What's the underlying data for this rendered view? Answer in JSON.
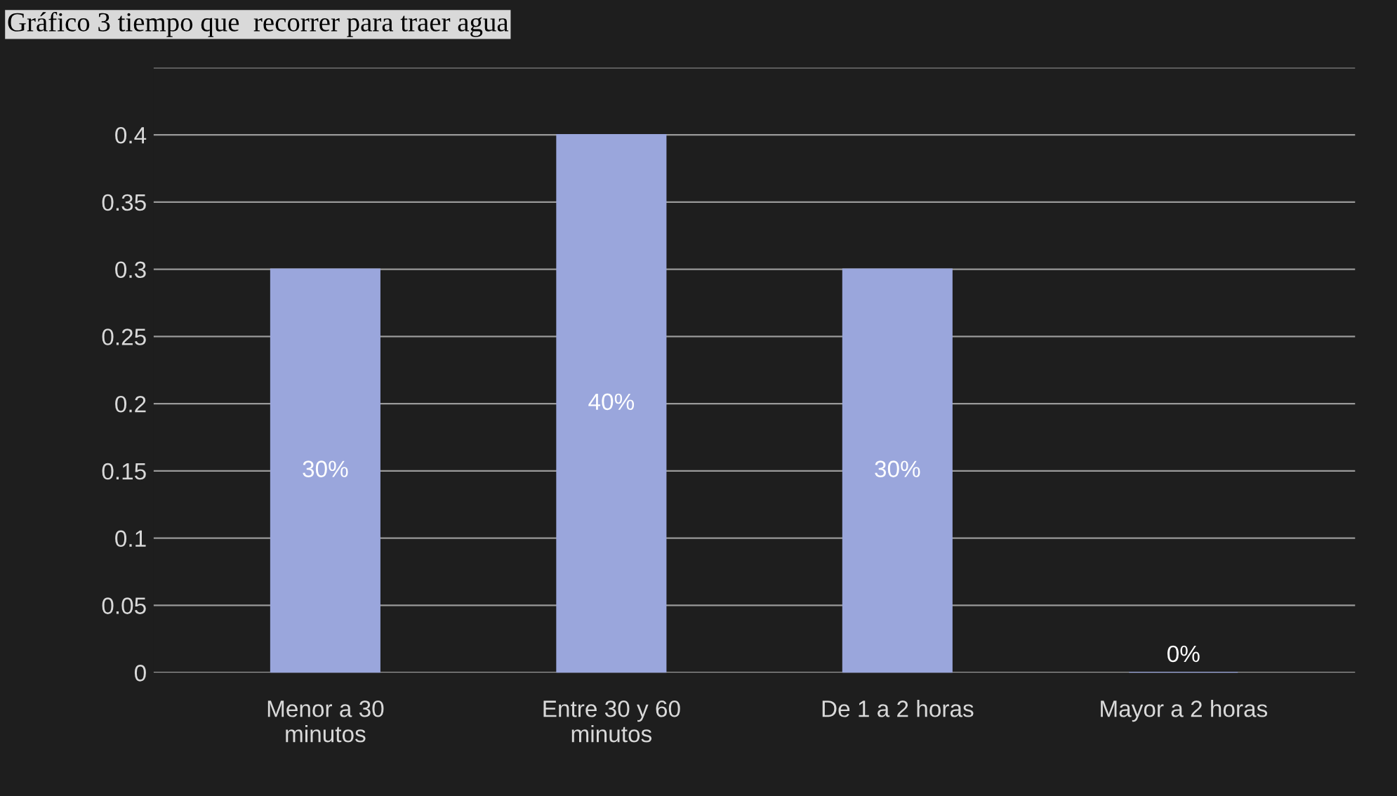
{
  "chart_data": {
    "type": "bar",
    "title": "Gráfico 3 tiempo que  recorrer para traer agua",
    "categories": [
      "Menor a 30\nminutos",
      "Entre 30 y 60\nminutos",
      "De 1 a 2 horas",
      "Mayor a 2 horas"
    ],
    "values": [
      0.3,
      0.4,
      0.3,
      0
    ],
    "color": "#9aa6dc",
    "value_labels": [
      "30%",
      "40%",
      "30%",
      "0%"
    ],
    "ylim": [
      0,
      0.45
    ],
    "yticks": [
      0,
      0.05,
      0.1,
      0.15,
      0.2,
      0.25,
      0.3,
      0.35,
      0.4,
      {
        "value": 0.45,
        "label": null
      }
    ],
    "grid": "y"
  }
}
